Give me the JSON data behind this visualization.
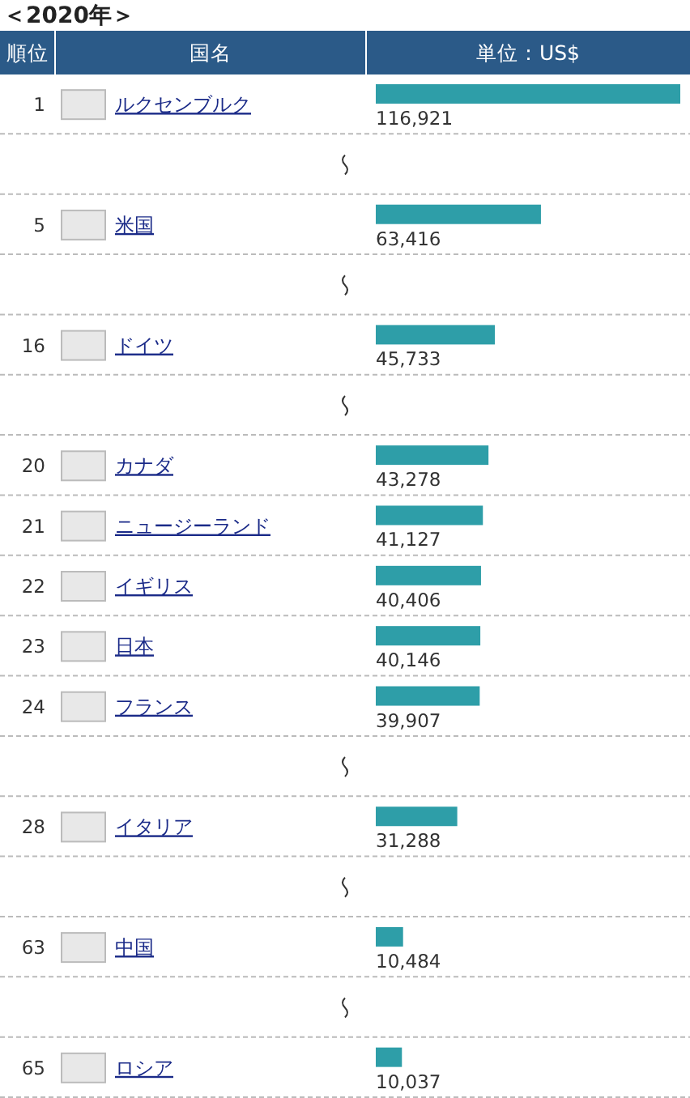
{
  "chart_data": {
    "type": "bar",
    "orientation": "horizontal",
    "title": "＜2020年＞",
    "ylabel": "国名",
    "xlabel": "単位：US$",
    "categories": [
      "ルクセンブルク",
      null,
      "米国",
      null,
      "ドイツ",
      null,
      "カナダ",
      "ニュージーランド",
      "イギリス",
      "日本",
      "フランス",
      null,
      "イタリア",
      null,
      "中国",
      null,
      "ロシア"
    ],
    "values": [
      116921,
      null,
      63416,
      null,
      45733,
      null,
      43278,
      41127,
      40406,
      40146,
      39907,
      null,
      31288,
      null,
      10484,
      null,
      10037
    ],
    "value_labels": [
      "116,921",
      null,
      "63,416",
      null,
      "45,733",
      null,
      "43,278",
      "41,127",
      "40,406",
      "40,146",
      "39,907",
      null,
      "31,288",
      null,
      "10,484",
      null,
      "10,037"
    ],
    "color": "#2e9ea8",
    "annotations": [
      "順位",
      "1",
      "5",
      "16",
      "20",
      "21",
      "22",
      "23",
      "24",
      "28",
      "63",
      "65"
    ]
  }
}
